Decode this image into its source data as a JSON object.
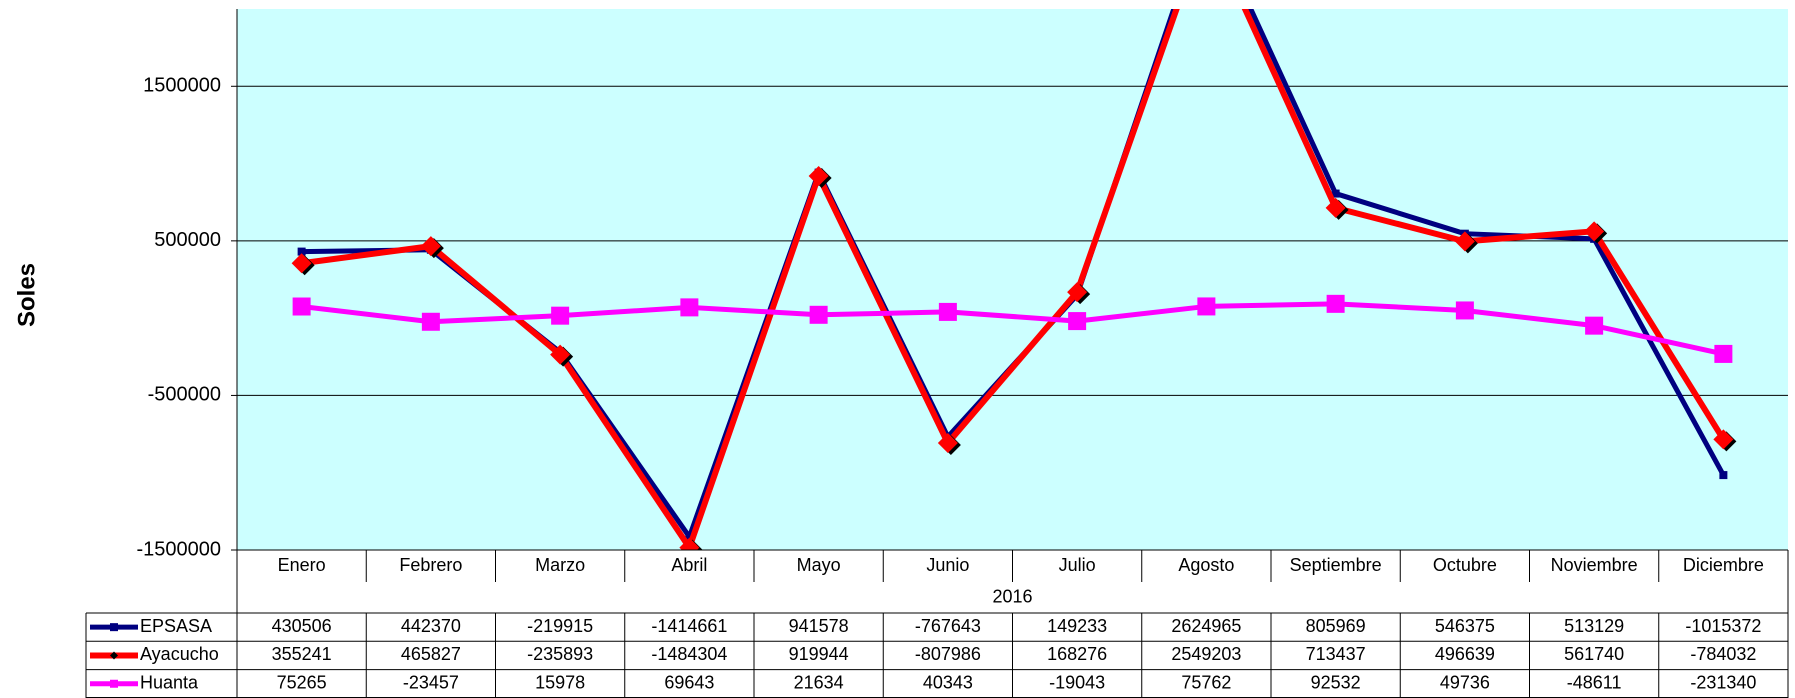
{
  "chart_data": {
    "type": "line",
    "y_label": "Soles",
    "x_group": "2016",
    "categories": [
      "Enero",
      "Febrero",
      "Marzo",
      "Abril",
      "Mayo",
      "Junio",
      "Julio",
      "Agosto",
      "Septiembre",
      "Octubre",
      "Noviembre",
      "Diciembre"
    ],
    "series": [
      {
        "name": "EPSASA",
        "color": "#000080",
        "values": [
          430506,
          442370,
          -219915,
          -1414661,
          941578,
          -767643,
          149233,
          2624965,
          805969,
          546375,
          513129,
          -1015372
        ]
      },
      {
        "name": "Ayacucho",
        "color": "#ff0000",
        "values": [
          355241,
          465827,
          -235893,
          -1484304,
          919944,
          -807986,
          168276,
          2549203,
          713437,
          496639,
          561740,
          -784032
        ]
      },
      {
        "name": "Huanta",
        "color": "#ff00ff",
        "values": [
          75265,
          -23457,
          15978,
          69643,
          21634,
          40343,
          -19043,
          75762,
          92532,
          49736,
          -48611,
          -231340
        ]
      }
    ],
    "ylim": [
      -1500000,
      2000000
    ],
    "yticks": [
      -1500000,
      -500000,
      500000,
      1500000
    ],
    "grid": true,
    "background": "#ccffff"
  }
}
